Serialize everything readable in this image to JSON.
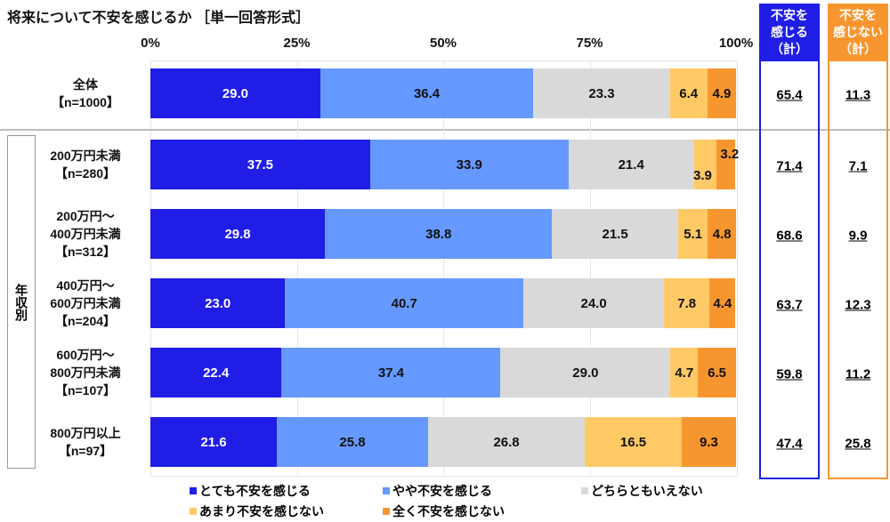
{
  "chart_data": {
    "type": "bar",
    "stacked": true,
    "orientation": "horizontal",
    "title": "将来について不安を感じるか ［単一回答形式］",
    "x_ticks": [
      "0%",
      "25%",
      "50%",
      "75%",
      "100%"
    ],
    "xlim": [
      0,
      100
    ],
    "group_label": "年収別",
    "categories": [
      {
        "name": "全体",
        "n": "【n=1000】"
      },
      {
        "name": "200万円未満",
        "n": "【n=280】"
      },
      {
        "name": "200万円～\n400万円未満",
        "n": "【n=312】"
      },
      {
        "name": "400万円～\n600万円未満",
        "n": "【n=204】"
      },
      {
        "name": "600万円～\n800万円未満",
        "n": "【n=107】"
      },
      {
        "name": "800万円以上",
        "n": "【n=97】"
      }
    ],
    "series": [
      {
        "name": "とても不安を感じる",
        "color": "#1f1de6",
        "values": [
          29.0,
          37.5,
          29.8,
          23.0,
          22.4,
          21.6
        ]
      },
      {
        "name": "やや不安を感じる",
        "color": "#6699ff",
        "values": [
          36.4,
          33.9,
          38.8,
          40.7,
          37.4,
          25.8
        ]
      },
      {
        "name": "どちらともいえない",
        "color": "#d9d9d9",
        "values": [
          23.3,
          21.4,
          21.5,
          24.0,
          29.0,
          26.8
        ]
      },
      {
        "name": "あまり不安を感じない",
        "color": "#ffc966",
        "values": [
          6.4,
          3.9,
          5.1,
          7.8,
          4.7,
          16.5
        ]
      },
      {
        "name": "全く不安を感じない",
        "color": "#f7962f",
        "values": [
          4.9,
          3.2,
          4.8,
          4.4,
          6.5,
          9.3
        ]
      }
    ],
    "summary_columns": [
      {
        "label": "不安を\n感じる\n（計）",
        "color": "#1f1de6",
        "values": [
          "65.4",
          "71.4",
          "68.6",
          "63.7",
          "59.8",
          "47.4"
        ]
      },
      {
        "label": "不安を\n感じない\n（計）",
        "color": "#f7962f",
        "values": [
          "11.3",
          "7.1",
          "9.9",
          "12.3",
          "11.2",
          "25.8"
        ]
      }
    ],
    "legend": "bottom",
    "grid": true
  }
}
